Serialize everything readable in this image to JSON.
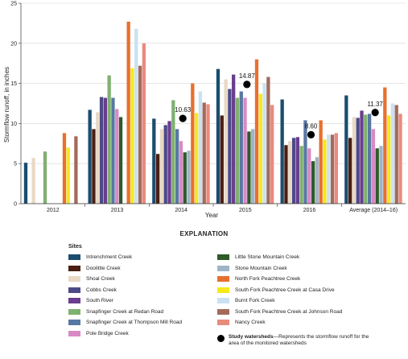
{
  "chart_data": {
    "type": "bar",
    "ylabel": "Stormflow runoff, in inches",
    "xlabel": "Year",
    "ylim": [
      0,
      25
    ],
    "yticks": [
      "0",
      "5",
      "10",
      "15",
      "20",
      "25"
    ],
    "categories": [
      "2012",
      "2013",
      "2014",
      "2015",
      "2016",
      "Average (2014–16)"
    ],
    "series": [
      {
        "name": "Intrenchment Creek",
        "color": "#1b4d6e",
        "values": [
          5.1,
          11.7,
          10.6,
          16.8,
          13.0,
          13.5
        ]
      },
      {
        "name": "Doolittle Creek",
        "color": "#4a1f14",
        "values": [
          null,
          9.3,
          6.2,
          11.0,
          7.3,
          8.2
        ]
      },
      {
        "name": "Shoal Creek",
        "color": "#e9d8c6",
        "values": [
          5.7,
          11.4,
          9.3,
          15.5,
          7.8,
          10.8
        ]
      },
      {
        "name": "Cobbs Creek",
        "color": "#4c4a86",
        "values": [
          null,
          13.3,
          9.8,
          14.3,
          8.2,
          10.7
        ]
      },
      {
        "name": "South River",
        "color": "#6a3d8e",
        "values": [
          null,
          13.2,
          10.3,
          16.1,
          8.3,
          11.6
        ]
      },
      {
        "name": "Snapfinger Creek at Redan Road",
        "color": "#7fb170",
        "values": [
          6.5,
          16.0,
          12.9,
          13.2,
          7.2,
          11.1
        ]
      },
      {
        "name": "Snapfinger Creek at Thompson Mill Road",
        "color": "#5878a3",
        "values": [
          null,
          13.2,
          9.3,
          14.0,
          10.4,
          11.2
        ]
      },
      {
        "name": "Pole Bridge Creek",
        "color": "#d98ac4",
        "values": [
          null,
          11.8,
          7.8,
          13.2,
          6.9,
          9.3
        ]
      },
      {
        "name": "Little Stone Mountain Creek",
        "color": "#2d5b2a",
        "values": [
          null,
          10.8,
          6.4,
          9.0,
          5.3,
          6.9
        ]
      },
      {
        "name": "Stone Mountain Creek",
        "color": "#9fb4c9",
        "values": [
          null,
          null,
          6.6,
          9.3,
          5.8,
          7.2
        ]
      },
      {
        "name": "North Fork Peachtree Creek",
        "color": "#e8702f",
        "values": [
          8.8,
          22.7,
          15.0,
          18.0,
          10.4,
          14.5
        ]
      },
      {
        "name": "South Fork Peachtree Creek at Casa Drive",
        "color": "#f6e81a",
        "values": [
          7.0,
          16.9,
          11.3,
          13.7,
          8.0,
          11.0
        ]
      },
      {
        "name": "Burnt Fork Creek",
        "color": "#c8e2f2",
        "values": [
          null,
          21.8,
          14.0,
          15.0,
          8.6,
          12.5
        ]
      },
      {
        "name": "South Fork Peachtree Creek at Johnson Road",
        "color": "#a36a5c",
        "values": [
          8.4,
          17.2,
          12.6,
          15.8,
          8.6,
          12.3
        ]
      },
      {
        "name": "Nancy Creek",
        "color": "#e88b7d",
        "values": [
          null,
          20.0,
          12.4,
          12.3,
          8.8,
          11.2
        ]
      }
    ],
    "study_watersheds": {
      "values": [
        null,
        null,
        10.63,
        14.87,
        8.6,
        11.37
      ],
      "labels": [
        "",
        "",
        "10.63",
        "14.87",
        "8.60",
        "11.37"
      ]
    }
  },
  "legend": {
    "title": "EXPLANATION",
    "heading": "Sites",
    "study_label_bold": "Study watersheds",
    "study_label_rest": "—Represents the stormflow runoff for the area of the monitored watersheds"
  }
}
